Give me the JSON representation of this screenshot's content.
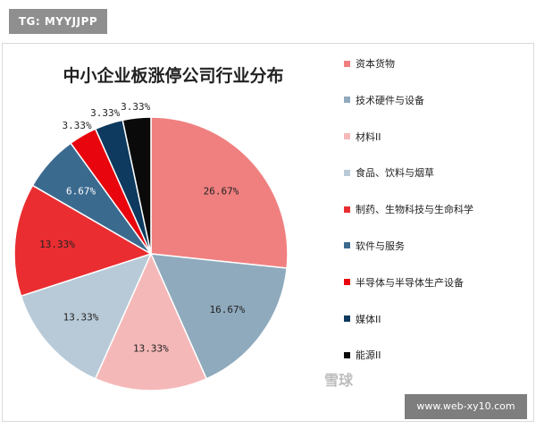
{
  "watermark": {
    "top_label": "TG: MYYJJPP",
    "logo_text": "雪球",
    "url": "www.web-xy10.com"
  },
  "colors": {
    "slices": [
      "#f08080",
      "#8faabd",
      "#f5b8b8",
      "#b8cad7",
      "#ea2d31",
      "#3b6a8f",
      "#e8050d",
      "#0d3a5e",
      "#0a0a0a"
    ]
  },
  "chart_data": {
    "type": "pie",
    "title": "中小企业板涨停公司行业分布",
    "legend_position": "right",
    "slices": [
      {
        "label": "资本货物",
        "value": 26.67,
        "value_label": "26.67%"
      },
      {
        "label": "技术硬件与设备",
        "value": 16.67,
        "value_label": "16.67%"
      },
      {
        "label": "材料II",
        "value": 13.33,
        "value_label": "13.33%"
      },
      {
        "label": "食品、饮料与烟草",
        "value": 13.33,
        "value_label": "13.33%"
      },
      {
        "label": "制药、生物科技与生命科学",
        "value": 13.33,
        "value_label": "13.33%"
      },
      {
        "label": "软件与服务",
        "value": 6.67,
        "value_label": "6.67%"
      },
      {
        "label": "半导体与半导体生产设备",
        "value": 3.33,
        "value_label": "3.33%"
      },
      {
        "label": "媒体II",
        "value": 3.33,
        "value_label": "3.33%"
      },
      {
        "label": "能源II",
        "value": 3.33,
        "value_label": "3.33%"
      }
    ]
  }
}
